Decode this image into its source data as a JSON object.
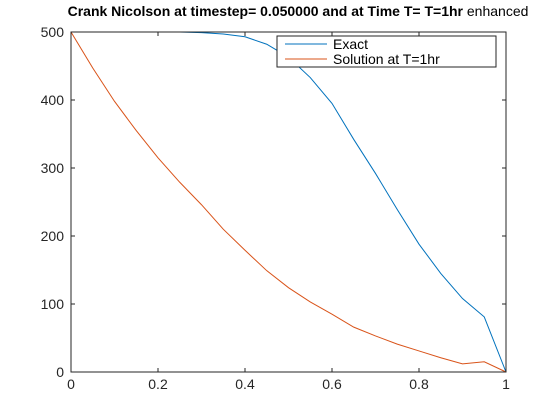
{
  "chart_data": {
    "type": "line",
    "title": {
      "bold": "Crank Nicolson at timestep= 0.050000 and at Time T= T=1hr",
      "normal": " enhanced"
    },
    "xlabel": "",
    "ylabel": "",
    "xlim": [
      0,
      1
    ],
    "ylim": [
      0,
      500
    ],
    "xticks": [
      0,
      0.2,
      0.4,
      0.6,
      0.8,
      1
    ],
    "xtick_labels": [
      "0",
      "0.2",
      "0.4",
      "0.6",
      "0.8",
      "1"
    ],
    "yticks": [
      0,
      100,
      200,
      300,
      400,
      500
    ],
    "ytick_labels": [
      "0",
      "100",
      "200",
      "300",
      "400",
      "500"
    ],
    "grid": false,
    "legend_position": "top-right",
    "series": [
      {
        "name": "Exact",
        "color": "#0072BD",
        "x": [
          0,
          0.05,
          0.1,
          0.15,
          0.2,
          0.25,
          0.3,
          0.35,
          0.4,
          0.45,
          0.5,
          0.55,
          0.6,
          0.65,
          0.7,
          0.75,
          0.8,
          0.85,
          0.9,
          0.95,
          1
        ],
        "y": [
          500,
          500,
          500,
          500,
          500,
          500,
          499,
          497,
          493,
          482,
          463,
          433,
          395,
          342,
          292,
          239,
          188,
          145,
          108,
          81,
          0
        ]
      },
      {
        "name": "Solution at T=1hr",
        "color": "#D95319",
        "x": [
          0,
          0.05,
          0.1,
          0.15,
          0.2,
          0.25,
          0.3,
          0.35,
          0.4,
          0.45,
          0.5,
          0.55,
          0.6,
          0.65,
          0.7,
          0.75,
          0.8,
          0.85,
          0.9,
          0.95,
          1
        ],
        "y": [
          500,
          447,
          398,
          355,
          315,
          279,
          246,
          210,
          179,
          149,
          124,
          103,
          85,
          66,
          53,
          41,
          31,
          21,
          12,
          15,
          0
        ]
      }
    ]
  }
}
